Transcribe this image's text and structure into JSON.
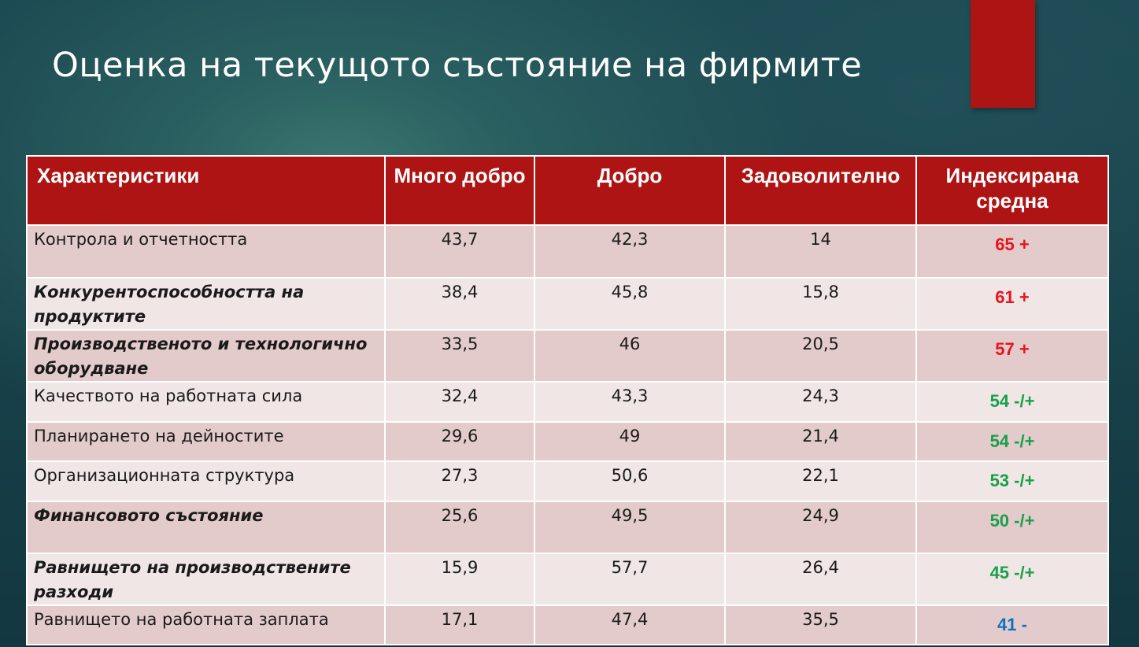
{
  "title": "Оценка на текущото състояние на фирмите",
  "headers": [
    "Характеристики",
    "Много добро",
    "Добро",
    "Задоволително",
    "Индексирана средна"
  ],
  "rows": [
    {
      "label": "Контрола и отчетността",
      "bold": false,
      "very_good": "43,7",
      "good": "42,3",
      "satisfactory": "14",
      "index": "65 +",
      "index_color": "#e8141c"
    },
    {
      "label": "Конкурентоспособността на продуктите",
      "bold": true,
      "very_good": "38,4",
      "good": "45,8",
      "satisfactory": "15,8",
      "index": "61 +",
      "index_color": "#e8141c"
    },
    {
      "label": "Производственото и технологично оборудване",
      "bold": true,
      "very_good": "33,5",
      "good": "46",
      "satisfactory": "20,5",
      "index": "57 +",
      "index_color": "#e8141c"
    },
    {
      "label": "Качеството на  работната сила",
      "bold": false,
      "very_good": "32,4",
      "good": "43,3",
      "satisfactory": "24,3",
      "index": "54 -/+",
      "index_color": "#18a04a"
    },
    {
      "label": "Планирането на дейностите",
      "bold": false,
      "very_good": "29,6",
      "good": "49",
      "satisfactory": "21,4",
      "index": "54 -/+",
      "index_color": "#18a04a"
    },
    {
      "label": "Организационната структура",
      "bold": false,
      "very_good": "27,3",
      "good": "50,6",
      "satisfactory": "22,1",
      "index": "53 -/+",
      "index_color": "#18a04a"
    },
    {
      "label": "Финансовото състояние",
      "bold": true,
      "very_good": "25,6",
      "good": "49,5",
      "satisfactory": "24,9",
      "index": "50 -/+",
      "index_color": "#18a04a"
    },
    {
      "label": "Равнището на производствените разходи",
      "bold": true,
      "very_good": "15,9",
      "good": "57,7",
      "satisfactory": "26,4",
      "index": "45 -/+",
      "index_color": "#18a04a"
    },
    {
      "label": "Равнището на работната заплата",
      "bold": false,
      "very_good": "17,1",
      "good": "47,4",
      "satisfactory": "35,5",
      "index": "41 -",
      "index_color": "#1070c0"
    }
  ]
}
